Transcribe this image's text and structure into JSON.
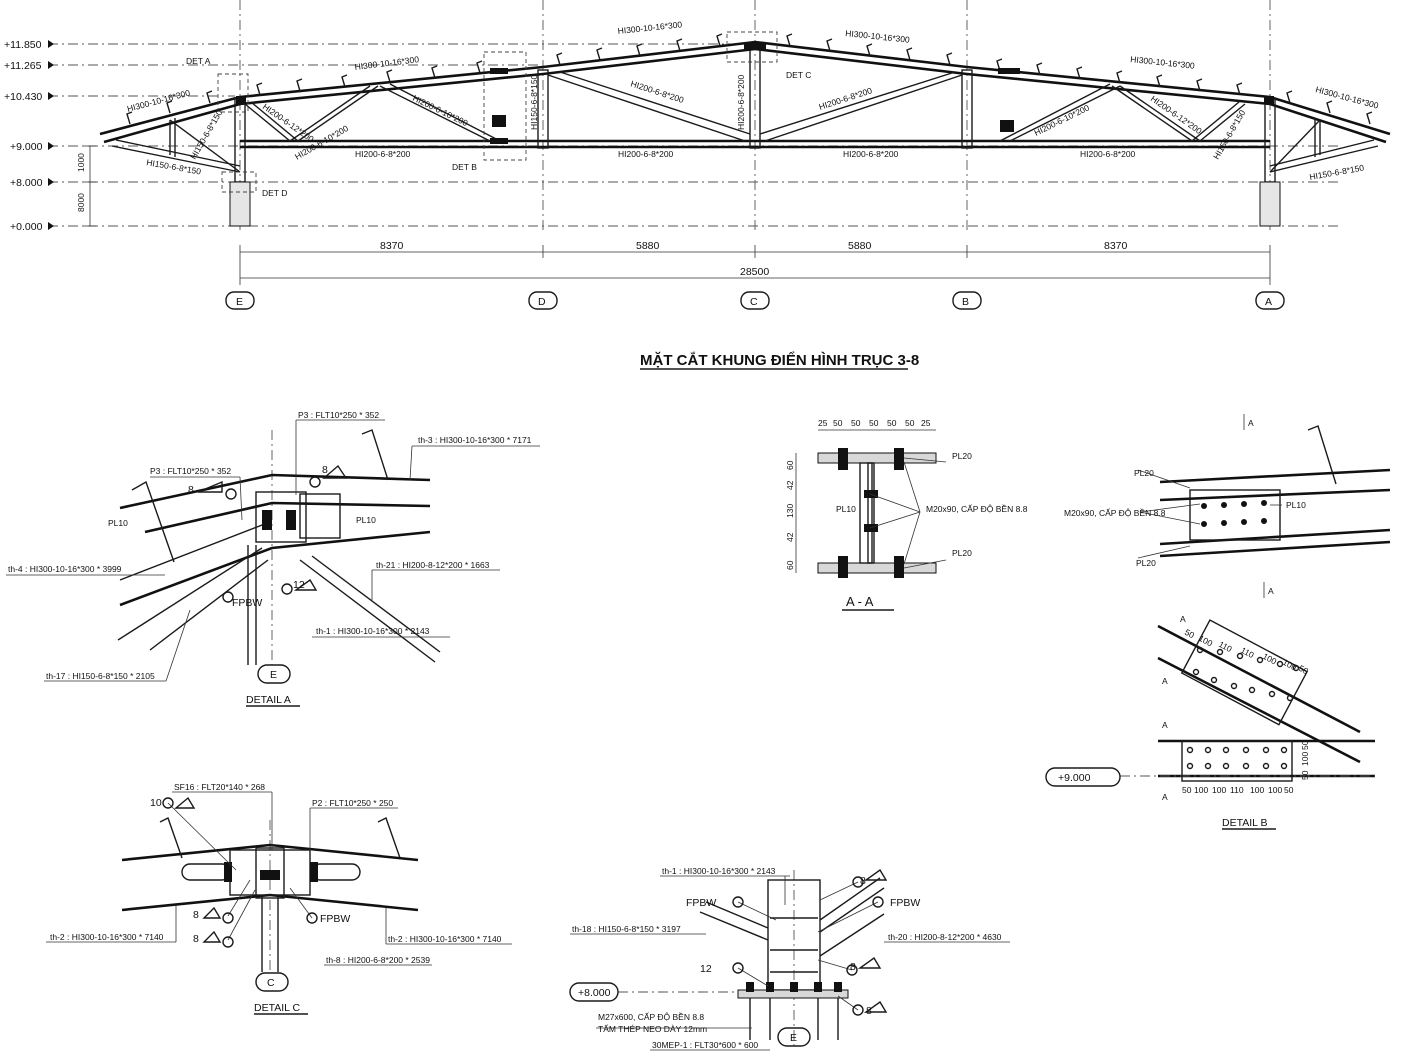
{
  "main_section": {
    "levels": [
      "+11.850",
      "+11.265",
      "+10.430",
      "+9.000",
      "+8.000",
      "+0.000"
    ],
    "vert_dims": [
      "1000",
      "8000"
    ],
    "spans": [
      "8370",
      "5880",
      "5880",
      "8370"
    ],
    "total_span": "28500",
    "axes": [
      "E",
      "D",
      "C",
      "B",
      "A"
    ],
    "members": {
      "top_1": "HI300-10-16*300",
      "top_2": "HI300-10-16*300",
      "top_3": "HI300-10-16*300",
      "top_4": "HI300-10-16*300",
      "top_5": "HI300-10-16*300",
      "top_6": "HI300-10-16*300",
      "diag_1": "HI200-6-12*200",
      "diag_2": "HI200-6-10*200",
      "diag_3": "HI200-6-10*200",
      "diag_4": "HI200-6-8*200",
      "diag_5": "HI200-6-8*200",
      "diag_6": "HI200-6-10*200",
      "diag_7": "HI200-6-12*200",
      "post_1": "HI150-6-8*150",
      "post_2": "HI150-6-8*150",
      "post_3": "HI200-6-8*200",
      "post_4": "HI150-6-8*150",
      "bot_1": "HI200-6-8*200",
      "bot_2": "HI200-6-8*200",
      "bot_3": "HI200-6-8*200",
      "bot_4": "HI200-6-8*200",
      "cant_1": "HI150-6-8*150",
      "cant_2": "HI150-6-8*150"
    },
    "det_labels": [
      "DET A",
      "DET B",
      "DET C",
      "DET D"
    ],
    "title": "MẶT CẮT KHUNG ĐIỂN HÌNH TRỤC 3-8"
  },
  "detail_a": {
    "title": "DETAIL  A",
    "p3_top": "P3 : FLT10*250  * 352",
    "p3_left": "P3 : FLT10*250  * 352",
    "th3": "th-3 : HI300-10-16*300    * 7171",
    "th4": "th-4 : HI300-10-16*300  * 3999",
    "th21": "th-21 : HI200-8-12*200    * 1663",
    "th1": "th-1 : HI300-10-16*300    * 2143",
    "th17": "th-17 : HI150-6-8*150    * 2105",
    "pl10_a": "PL10",
    "pl10_b": "PL10",
    "fpbw": "FPBW",
    "weld_8a": "8",
    "weld_8b": "8",
    "weld_12": "12",
    "axis": "E"
  },
  "section_aa": {
    "title": "A  -  A",
    "dims_top": [
      "25",
      "50",
      "50",
      "50",
      "50",
      "50",
      "25"
    ],
    "dims_side": [
      "60",
      "42",
      "130",
      "42",
      "60"
    ],
    "pl20_a": "PL20",
    "pl20_b": "PL20",
    "pl10": "PL10",
    "bolt_spec": "M20x90, CẤP ĐỘ BỀN 8.8"
  },
  "detail_b": {
    "title": "DETAIL  B",
    "pl20_a": "PL20",
    "pl20_b": "PL20",
    "pl10": "PL10",
    "bolt_spec": "M20x90, CẤP ĐỘ BỀN 8.8",
    "cut_mark": "A",
    "dims_top": [
      "50",
      "100",
      "110",
      "110",
      "100",
      "100",
      "50"
    ],
    "dims_bot": [
      "50",
      "100",
      "100",
      "110",
      "100",
      "100",
      "50"
    ],
    "dims_side": [
      "50",
      "100",
      "50"
    ],
    "level": "+9.000"
  },
  "detail_c": {
    "title": "DETAIL  C",
    "sf16": "SF16 : FLT20*140   * 268",
    "p2": "P2 : FLT10*250  * 250",
    "th2_left": "th-2 : HI300-10-16*300    * 7140",
    "th2_right": "th-2 : HI300-10-16*300    * 7140",
    "th8": "th-8 : HI200-6-8*200    * 2539",
    "fpbw": "FPBW",
    "weld_10": "10",
    "weld_8a": "8",
    "weld_8b": "8",
    "axis": "C"
  },
  "detail_d": {
    "th1": "th-1 : HI300-10-16*300    * 2143",
    "th18": "th-18 : HI150-6-8*150    * 3197",
    "th20": "th-20 : HI200-8-12*200    * 4630",
    "fpbw_left": "FPBW",
    "fpbw_right": "FPBW",
    "weld_8a": "8",
    "weld_8b": "8",
    "weld_8c": "8",
    "weld_12": "12",
    "level": "+8.000",
    "bolt_spec": "M27x600, CẤP ĐỘ BỀN 8.8",
    "plate_note": "TẤM THÉP NEO DÀY 12mm",
    "base_plate": "30MEP-1 : FLT30*600   * 600",
    "axis": "E"
  }
}
